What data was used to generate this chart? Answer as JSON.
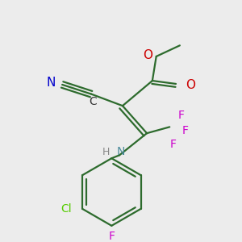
{
  "bg_color": "#ececec",
  "bond_color": "#2d6b2d",
  "bond_lw": 1.6,
  "atom_colors": {
    "N_triple": "#0000cc",
    "N_amine": "#4a8a9a",
    "O": "#cc0000",
    "F": "#cc00cc",
    "Cl": "#55cc00",
    "H": "#888888",
    "C": "#333333"
  },
  "fs_large": 11,
  "fs_med": 10,
  "fs_small": 9
}
